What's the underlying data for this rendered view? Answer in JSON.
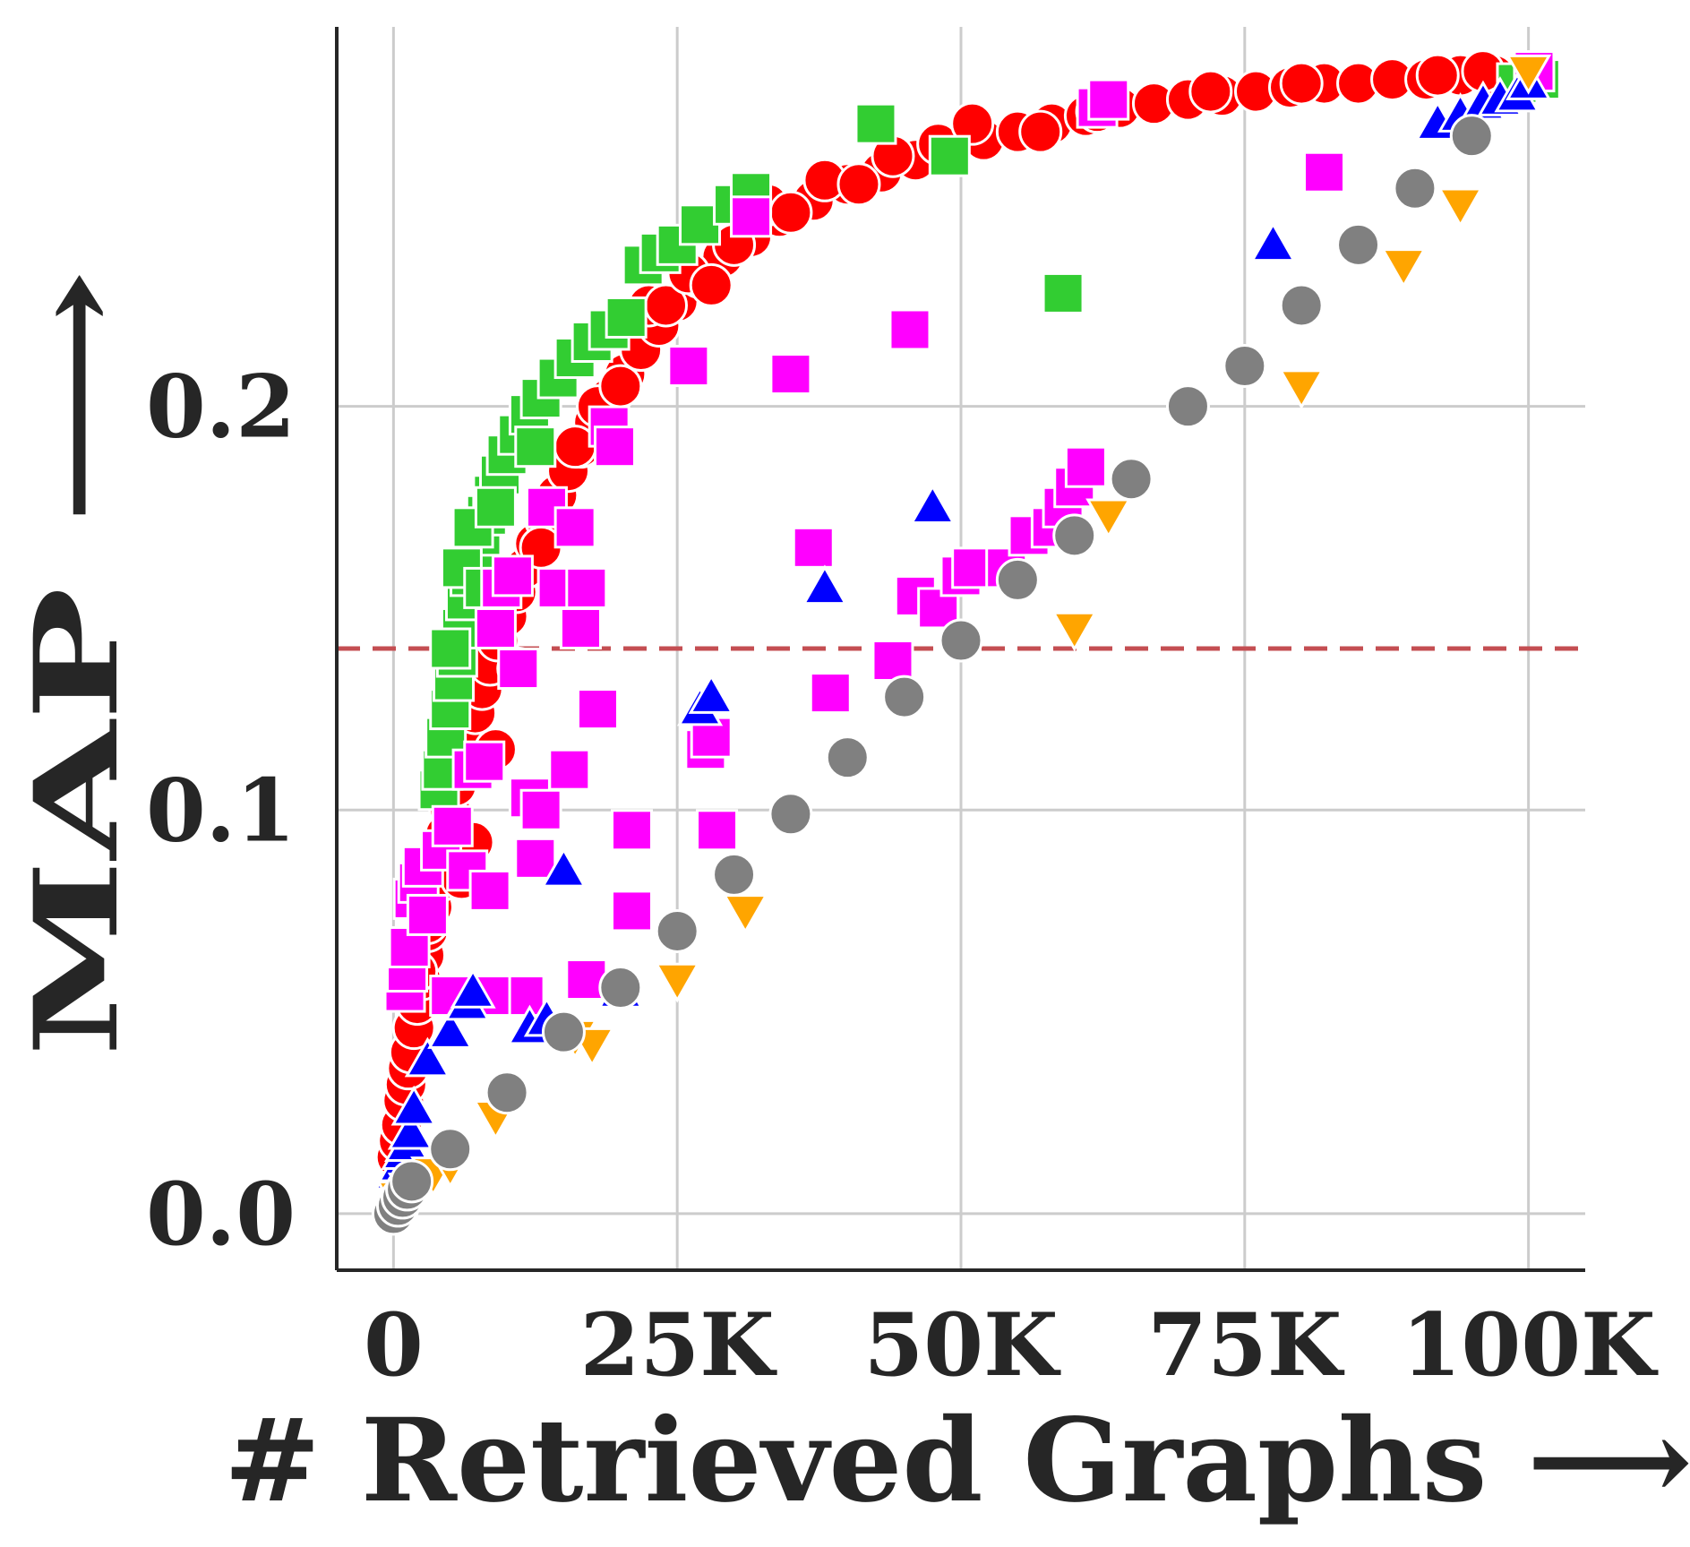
{
  "chart_data": {
    "type": "scatter",
    "xlabel": "# Retrieved Graphs ⟶",
    "ylabel": "MAP ⟶",
    "x_ticks": [
      {
        "value": 0,
        "label": "0"
      },
      {
        "value": 25000,
        "label": "25K"
      },
      {
        "value": 50000,
        "label": "50K"
      },
      {
        "value": 75000,
        "label": "75K"
      },
      {
        "value": 100000,
        "label": "100K"
      }
    ],
    "y_ticks": [
      {
        "value": 0.0,
        "label": "0.0"
      },
      {
        "value": 0.1,
        "label": "0.1"
      },
      {
        "value": 0.2,
        "label": "0.2"
      }
    ],
    "xlim": [
      -5000,
      105000
    ],
    "ylim": [
      -0.014,
      0.294
    ],
    "grid": true,
    "reference_line": {
      "y": 0.14,
      "style": "dashed",
      "color": "#c44e52"
    },
    "series": [
      {
        "marker": "circle",
        "color": "#ff0000",
        "points": [
          [
            300,
            0.014
          ],
          [
            500,
            0.018
          ],
          [
            700,
            0.022
          ],
          [
            900,
            0.028
          ],
          [
            1100,
            0.032
          ],
          [
            1300,
            0.036
          ],
          [
            1500,
            0.04
          ],
          [
            1800,
            0.046
          ],
          [
            2100,
            0.052
          ],
          [
            2400,
            0.058
          ],
          [
            2700,
            0.064
          ],
          [
            3000,
            0.07
          ],
          [
            3400,
            0.076
          ],
          [
            3800,
            0.082
          ],
          [
            4200,
            0.088
          ],
          [
            4600,
            0.094
          ],
          [
            5000,
            0.1
          ],
          [
            5500,
            0.106
          ],
          [
            6000,
            0.112
          ],
          [
            6600,
            0.118
          ],
          [
            7200,
            0.124
          ],
          [
            7800,
            0.13
          ],
          [
            8500,
            0.136
          ],
          [
            9200,
            0.142
          ],
          [
            10000,
            0.148
          ],
          [
            10800,
            0.154
          ],
          [
            11600,
            0.16
          ],
          [
            12500,
            0.166
          ],
          [
            13400,
            0.172
          ],
          [
            14400,
            0.178
          ],
          [
            15400,
            0.184
          ],
          [
            16500,
            0.19
          ],
          [
            17700,
            0.196
          ],
          [
            19000,
            0.202
          ],
          [
            20400,
            0.208
          ],
          [
            21800,
            0.214
          ],
          [
            23400,
            0.22
          ],
          [
            25000,
            0.226
          ],
          [
            27000,
            0.232
          ],
          [
            29000,
            0.237
          ],
          [
            31500,
            0.242
          ],
          [
            34000,
            0.247
          ],
          [
            37000,
            0.251
          ],
          [
            40000,
            0.255
          ],
          [
            43000,
            0.258
          ],
          [
            46000,
            0.261
          ],
          [
            49000,
            0.264
          ],
          [
            52000,
            0.266
          ],
          [
            55000,
            0.268
          ],
          [
            58000,
            0.27
          ],
          [
            61000,
            0.272
          ],
          [
            64000,
            0.274
          ],
          [
            67000,
            0.275
          ],
          [
            70000,
            0.276
          ],
          [
            73000,
            0.277
          ],
          [
            76000,
            0.278
          ],
          [
            79000,
            0.279
          ],
          [
            82000,
            0.28
          ],
          [
            85000,
            0.28
          ],
          [
            88000,
            0.281
          ],
          [
            91000,
            0.281
          ],
          [
            94000,
            0.282
          ],
          [
            97000,
            0.282
          ],
          [
            100000,
            0.282
          ],
          [
            2000,
            0.06
          ],
          [
            3000,
            0.072
          ],
          [
            6000,
            0.083
          ],
          [
            7000,
            0.092
          ],
          [
            9000,
            0.115
          ],
          [
            11000,
            0.135
          ],
          [
            13000,
            0.165
          ],
          [
            16000,
            0.19
          ],
          [
            18000,
            0.2
          ],
          [
            20000,
            0.205
          ],
          [
            22500,
            0.225
          ],
          [
            24000,
            0.225
          ],
          [
            26000,
            0.233
          ],
          [
            28000,
            0.23
          ],
          [
            30000,
            0.24
          ],
          [
            33000,
            0.25
          ],
          [
            35000,
            0.248
          ],
          [
            38000,
            0.256
          ],
          [
            41000,
            0.255
          ],
          [
            44000,
            0.262
          ],
          [
            48000,
            0.265
          ],
          [
            51000,
            0.27
          ],
          [
            57000,
            0.268
          ],
          [
            62000,
            0.273
          ],
          [
            72000,
            0.278
          ],
          [
            80000,
            0.28
          ],
          [
            92000,
            0.282
          ],
          [
            96000,
            0.283
          ]
        ]
      },
      {
        "marker": "square",
        "color": "#32cd32",
        "points": [
          [
            4000,
            0.105
          ],
          [
            4300,
            0.11
          ],
          [
            4600,
            0.118
          ],
          [
            5000,
            0.125
          ],
          [
            5300,
            0.132
          ],
          [
            5600,
            0.138
          ],
          [
            6000,
            0.145
          ],
          [
            6400,
            0.152
          ],
          [
            6800,
            0.158
          ],
          [
            7200,
            0.163
          ],
          [
            7700,
            0.168
          ],
          [
            8200,
            0.173
          ],
          [
            8800,
            0.178
          ],
          [
            9400,
            0.183
          ],
          [
            10000,
            0.188
          ],
          [
            11000,
            0.193
          ],
          [
            12000,
            0.198
          ],
          [
            13000,
            0.202
          ],
          [
            14500,
            0.207
          ],
          [
            16000,
            0.212
          ],
          [
            17500,
            0.216
          ],
          [
            19000,
            0.219
          ],
          [
            20500,
            0.222
          ],
          [
            22000,
            0.235
          ],
          [
            23500,
            0.238
          ],
          [
            25000,
            0.24
          ],
          [
            27000,
            0.245
          ],
          [
            30000,
            0.25
          ],
          [
            31500,
            0.253
          ],
          [
            42500,
            0.27
          ],
          [
            49000,
            0.262
          ],
          [
            59000,
            0.228
          ],
          [
            99000,
            0.28
          ],
          [
            101000,
            0.281
          ],
          [
            5000,
            0.14
          ],
          [
            6000,
            0.16
          ],
          [
            7000,
            0.17
          ],
          [
            12500,
            0.19
          ],
          [
            9000,
            0.175
          ],
          [
            8000,
            0.155
          ]
        ]
      },
      {
        "marker": "square",
        "color": "#ff00ff",
        "points": [
          [
            1000,
            0.055
          ],
          [
            1200,
            0.06
          ],
          [
            1400,
            0.066
          ],
          [
            1800,
            0.078
          ],
          [
            2200,
            0.082
          ],
          [
            2600,
            0.086
          ],
          [
            3000,
            0.074
          ],
          [
            4200,
            0.09
          ],
          [
            5200,
            0.096
          ],
          [
            6500,
            0.085
          ],
          [
            7000,
            0.11
          ],
          [
            8000,
            0.112
          ],
          [
            8500,
            0.08
          ],
          [
            9000,
            0.145
          ],
          [
            9500,
            0.155
          ],
          [
            10500,
            0.158
          ],
          [
            11000,
            0.135
          ],
          [
            12000,
            0.103
          ],
          [
            12500,
            0.088
          ],
          [
            13000,
            0.1
          ],
          [
            13500,
            0.175
          ],
          [
            14500,
            0.155
          ],
          [
            15500,
            0.11
          ],
          [
            16000,
            0.17
          ],
          [
            16500,
            0.145
          ],
          [
            17000,
            0.155
          ],
          [
            18000,
            0.125
          ],
          [
            19000,
            0.195
          ],
          [
            19500,
            0.19
          ],
          [
            21000,
            0.095
          ],
          [
            21000,
            0.075
          ],
          [
            17000,
            0.058
          ],
          [
            11500,
            0.054
          ],
          [
            8500,
            0.054
          ],
          [
            5000,
            0.054
          ],
          [
            26000,
            0.21
          ],
          [
            27500,
            0.115
          ],
          [
            28000,
            0.118
          ],
          [
            28500,
            0.095
          ],
          [
            31500,
            0.247
          ],
          [
            35000,
            0.208
          ],
          [
            37000,
            0.165
          ],
          [
            38500,
            0.129
          ],
          [
            44000,
            0.137
          ],
          [
            45500,
            0.219
          ],
          [
            46000,
            0.153
          ],
          [
            48000,
            0.15
          ],
          [
            50000,
            0.158
          ],
          [
            51000,
            0.16
          ],
          [
            54000,
            0.16
          ],
          [
            56000,
            0.168
          ],
          [
            58000,
            0.17
          ],
          [
            59000,
            0.175
          ],
          [
            60000,
            0.18
          ],
          [
            61000,
            0.185
          ],
          [
            62000,
            0.274
          ],
          [
            63000,
            0.276
          ],
          [
            82000,
            0.258
          ],
          [
            100500,
            0.283
          ]
        ]
      },
      {
        "marker": "triangle-up",
        "color": "#0000ff",
        "points": [
          [
            300,
            0.01
          ],
          [
            600,
            0.012
          ],
          [
            900,
            0.015
          ],
          [
            1200,
            0.017
          ],
          [
            1500,
            0.02
          ],
          [
            1800,
            0.026
          ],
          [
            3000,
            0.038
          ],
          [
            5000,
            0.045
          ],
          [
            6500,
            0.052
          ],
          [
            7000,
            0.055
          ],
          [
            12000,
            0.046
          ],
          [
            13500,
            0.048
          ],
          [
            15000,
            0.085
          ],
          [
            20000,
            0.055
          ],
          [
            27000,
            0.125
          ],
          [
            28000,
            0.128
          ],
          [
            38000,
            0.155
          ],
          [
            47500,
            0.175
          ],
          [
            77500,
            0.24
          ],
          [
            92000,
            0.27
          ],
          [
            94000,
            0.272
          ],
          [
            96000,
            0.275
          ],
          [
            97500,
            0.276
          ],
          [
            99000,
            0.277
          ],
          [
            100000,
            0.28
          ]
        ]
      },
      {
        "marker": "triangle-down",
        "color": "#ffa500",
        "points": [
          [
            500,
            0.004
          ],
          [
            1500,
            0.006
          ],
          [
            2500,
            0.008
          ],
          [
            3500,
            0.01
          ],
          [
            5000,
            0.012
          ],
          [
            9000,
            0.024
          ],
          [
            16000,
            0.044
          ],
          [
            17500,
            0.042
          ],
          [
            25000,
            0.058
          ],
          [
            31000,
            0.075
          ],
          [
            60000,
            0.145
          ],
          [
            63000,
            0.173
          ],
          [
            80000,
            0.205
          ],
          [
            89000,
            0.235
          ],
          [
            94000,
            0.25
          ],
          [
            100000,
            0.283
          ]
        ]
      },
      {
        "marker": "circle",
        "color": "#808080",
        "points": [
          [
            0,
            0.0
          ],
          [
            400,
            0.002
          ],
          [
            800,
            0.004
          ],
          [
            1200,
            0.006
          ],
          [
            1600,
            0.008
          ],
          [
            5000,
            0.016
          ],
          [
            10000,
            0.03
          ],
          [
            15000,
            0.045
          ],
          [
            20000,
            0.056
          ],
          [
            25000,
            0.07
          ],
          [
            30000,
            0.084
          ],
          [
            35000,
            0.099
          ],
          [
            40000,
            0.113
          ],
          [
            45000,
            0.128
          ],
          [
            50000,
            0.142
          ],
          [
            55000,
            0.157
          ],
          [
            60000,
            0.168
          ],
          [
            65000,
            0.182
          ],
          [
            70000,
            0.2
          ],
          [
            75000,
            0.21
          ],
          [
            80000,
            0.225
          ],
          [
            85000,
            0.24
          ],
          [
            90000,
            0.254
          ],
          [
            95000,
            0.267
          ]
        ]
      }
    ]
  }
}
